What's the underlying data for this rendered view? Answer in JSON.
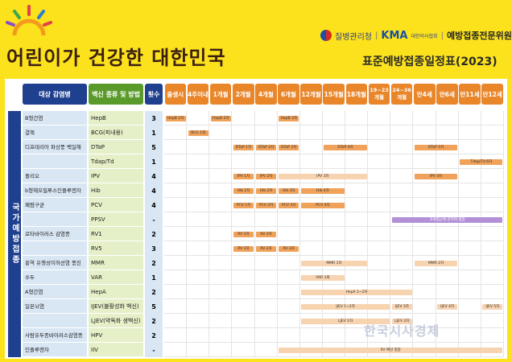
{
  "header": {
    "title": "어린이가 건강한 대한민국",
    "org_kdca": "질병관리청",
    "org_kma": "KMA",
    "org_kma_sub": "대한의사협회",
    "org_committee": "예방접종전문위원회",
    "subtitle": "표준예방접종일정표(2023)"
  },
  "columns": {
    "disease": "대상 감염병",
    "vaccine": "백신 종류 및 방법",
    "doses": "횟수",
    "ages": [
      "출생시",
      "4주이내",
      "1개월",
      "2개월",
      "4개월",
      "6개월",
      "12개월",
      "15개월",
      "18개월",
      "19~23개월",
      "24~36개월",
      "만4세",
      "만6세",
      "만11세",
      "만12세"
    ]
  },
  "sidebar_label": "국가예방접종",
  "rows": [
    {
      "disease": "B형간염",
      "vaccine": "HepB",
      "doses": "3",
      "bars": [
        {
          "c": 0,
          "s": 1,
          "t": "HepB 1차",
          "k": "dk"
        },
        {
          "c": 2,
          "s": 1,
          "t": "HepB 2차",
          "k": "dk"
        },
        {
          "c": 5,
          "s": 1,
          "t": "HepB 3차",
          "k": "dk"
        }
      ]
    },
    {
      "disease": "결핵",
      "vaccine": "BCG(피내용)",
      "doses": "1",
      "bars": [
        {
          "c": 1,
          "s": 1,
          "t": "BCG 1회",
          "k": "dk"
        }
      ]
    },
    {
      "disease": "디프테리아 파상풍 백일해",
      "vaccine": "DTaP",
      "doses": "5",
      "bars": [
        {
          "c": 3,
          "s": 1,
          "t": "DTaP 1차",
          "k": "dk"
        },
        {
          "c": 4,
          "s": 1,
          "t": "DTaP 2차",
          "k": "dk"
        },
        {
          "c": 5,
          "s": 1,
          "t": "DTaP 3차",
          "k": "dk"
        },
        {
          "c": 7,
          "s": 2,
          "t": "DTaP 4차",
          "k": "dk"
        },
        {
          "c": 11,
          "s": 2,
          "t": "DTaP 5차",
          "k": "dk"
        }
      ]
    },
    {
      "disease": "",
      "vaccine": "Tdap/Td",
      "doses": "1",
      "bars": [
        {
          "c": 13,
          "s": 2,
          "t": "Tdap/Td 6차",
          "k": "dk"
        }
      ]
    },
    {
      "disease": "폴리오",
      "vaccine": "IPV",
      "doses": "4",
      "bars": [
        {
          "c": 3,
          "s": 1,
          "t": "IPV 1차",
          "k": "dk"
        },
        {
          "c": 4,
          "s": 1,
          "t": "IPV 2차",
          "k": "dk"
        },
        {
          "c": 5,
          "s": 4,
          "t": "IPV 3차",
          "k": "lt"
        },
        {
          "c": 11,
          "s": 2,
          "t": "IPV 4차",
          "k": "dk"
        }
      ]
    },
    {
      "disease": "b형헤모필루스인플루엔자",
      "vaccine": "Hib",
      "doses": "4",
      "bars": [
        {
          "c": 3,
          "s": 1,
          "t": "Hib 1차",
          "k": "dk"
        },
        {
          "c": 4,
          "s": 1,
          "t": "Hib 2차",
          "k": "dk"
        },
        {
          "c": 5,
          "s": 1,
          "t": "Hib 3차",
          "k": "dk"
        },
        {
          "c": 6,
          "s": 2,
          "t": "Hib 4차",
          "k": "dk"
        }
      ]
    },
    {
      "disease": "폐렴구균",
      "vaccine": "PCV",
      "doses": "4",
      "bars": [
        {
          "c": 3,
          "s": 1,
          "t": "PCV 1차",
          "k": "dk"
        },
        {
          "c": 4,
          "s": 1,
          "t": "PCV 2차",
          "k": "dk"
        },
        {
          "c": 5,
          "s": 1,
          "t": "PCV 3차",
          "k": "dk"
        },
        {
          "c": 6,
          "s": 2,
          "t": "PCV 4차",
          "k": "dk"
        }
      ]
    },
    {
      "disease": "",
      "vaccine": "PPSV",
      "doses": "-",
      "bars": [
        {
          "c": 10,
          "s": 5,
          "t": "고위험군에 한하여 접종",
          "k": "pu"
        }
      ]
    },
    {
      "disease": "로타바이러스 감염증",
      "vaccine": "RV1",
      "doses": "2",
      "bars": [
        {
          "c": 3,
          "s": 1,
          "t": "RV 1차",
          "k": "dk"
        },
        {
          "c": 4,
          "s": 1,
          "t": "RV 2차",
          "k": "dk"
        }
      ]
    },
    {
      "disease": "",
      "vaccine": "RV5",
      "doses": "3",
      "bars": [
        {
          "c": 3,
          "s": 1,
          "t": "RV 1차",
          "k": "dk"
        },
        {
          "c": 4,
          "s": 1,
          "t": "RV 2차",
          "k": "dk"
        },
        {
          "c": 5,
          "s": 1,
          "t": "RV 3차",
          "k": "dk"
        }
      ]
    },
    {
      "disease": "홍역 유행성이하선염 풍진",
      "vaccine": "MMR",
      "doses": "2",
      "bars": [
        {
          "c": 6,
          "s": 3,
          "t": "MMR 1차",
          "k": "lt"
        },
        {
          "c": 11,
          "s": 2,
          "t": "MMR 2차",
          "k": "lt"
        }
      ]
    },
    {
      "disease": "수두",
      "vaccine": "VAR",
      "doses": "1",
      "bars": [
        {
          "c": 6,
          "s": 2,
          "t": "VAR 1회",
          "k": "lt"
        }
      ]
    },
    {
      "disease": "A형간염",
      "vaccine": "HepA",
      "doses": "2",
      "bars": [
        {
          "c": 6,
          "s": 5,
          "t": "HepA 1~2차",
          "k": "lt"
        }
      ]
    },
    {
      "disease": "일본뇌염",
      "vaccine": "IJEV(불활성화 백신)",
      "doses": "5",
      "bars": [
        {
          "c": 6,
          "s": 4,
          "t": "IJEV 1~2차",
          "k": "lt"
        },
        {
          "c": 10,
          "s": 1,
          "t": "IJEV 3차",
          "k": "lt"
        },
        {
          "c": 12,
          "s": 1,
          "t": "IJEV 4차",
          "k": "lt"
        },
        {
          "c": 14,
          "s": 1,
          "t": "IJEV 5차",
          "k": "lt"
        }
      ]
    },
    {
      "disease": "",
      "vaccine": "LJEV(약독화 생백신)",
      "doses": "2",
      "bars": [
        {
          "c": 6,
          "s": 4,
          "t": "LJEV 1차",
          "k": "lt"
        },
        {
          "c": 10,
          "s": 1,
          "t": "LJEV 2차",
          "k": "lt"
        }
      ]
    },
    {
      "disease": "사람유두종바이러스감염증",
      "vaccine": "HPV",
      "doses": "2",
      "bars": []
    },
    {
      "disease": "인플루엔자",
      "vaccine": "IIV",
      "doses": "-",
      "bars": [
        {
          "c": 5,
          "s": 10,
          "t": "IIV 매년 접종",
          "k": "lt"
        }
      ]
    }
  ],
  "watermark": "한국시사경제"
}
